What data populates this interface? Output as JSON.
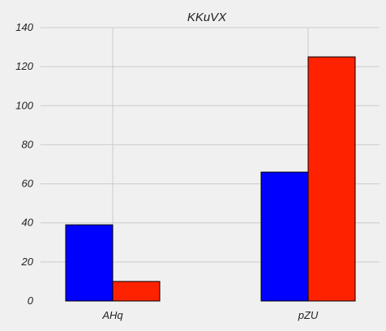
{
  "chart_data": {
    "type": "bar",
    "title": "KKuVX",
    "xlabel": "",
    "ylabel": "",
    "categories": [
      "AHq",
      "pZU"
    ],
    "series": [
      {
        "values": [
          39,
          66
        ],
        "color": "#0000ff"
      },
      {
        "values": [
          10,
          125
        ],
        "color": "#ff2200"
      }
    ],
    "ylim": [
      0,
      140
    ],
    "yticks": [
      "0",
      "20",
      "40",
      "60",
      "80",
      "100",
      "120",
      "140"
    ],
    "grid": true,
    "background": "#f0f0f0",
    "grid_color": "#cbcbcb"
  }
}
